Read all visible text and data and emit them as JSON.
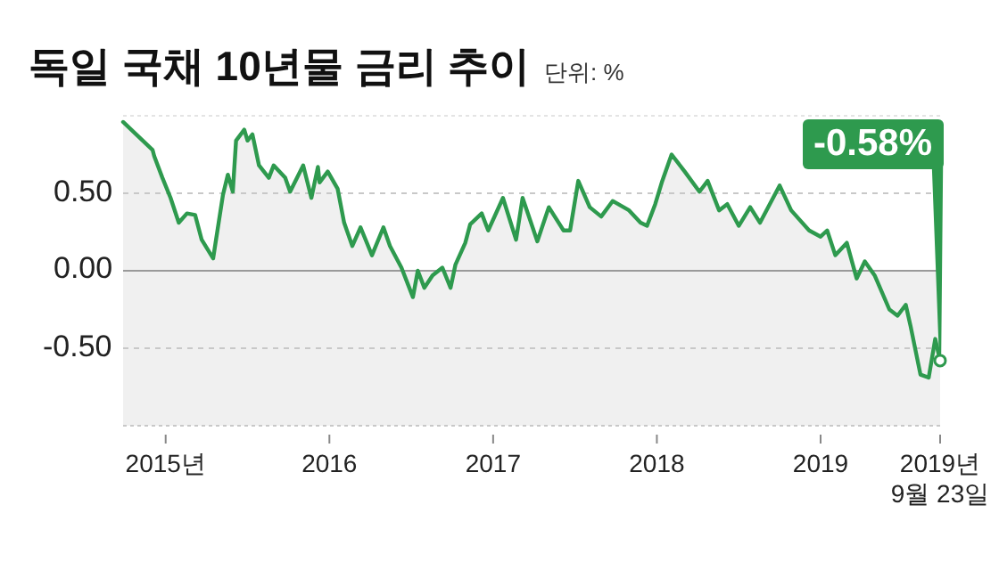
{
  "chart_data": {
    "type": "area",
    "title": "독일 국채 10년물 금리 추이",
    "subtitle": "단위: %",
    "x": [
      2014.74,
      2014.82,
      2014.92,
      2014.93,
      2014.98,
      2015.03,
      2015.08,
      2015.13,
      2015.18,
      2015.22,
      2015.29,
      2015.35,
      2015.38,
      2015.41,
      2015.43,
      2015.48,
      2015.5,
      2015.53,
      2015.57,
      2015.63,
      2015.66,
      2015.73,
      2015.76,
      2015.84,
      2015.89,
      2015.93,
      2015.94,
      2015.99,
      2016.05,
      2016.09,
      2016.14,
      2016.19,
      2016.26,
      2016.33,
      2016.37,
      2016.44,
      2016.51,
      2016.54,
      2016.58,
      2016.63,
      2016.69,
      2016.74,
      2016.77,
      2016.83,
      2016.86,
      2016.93,
      2016.97,
      2017.06,
      2017.14,
      2017.18,
      2017.27,
      2017.34,
      2017.43,
      2017.47,
      2017.52,
      2017.59,
      2017.66,
      2017.73,
      2017.83,
      2017.9,
      2017.94,
      2017.99,
      2018.03,
      2018.09,
      2018.17,
      2018.26,
      2018.31,
      2018.38,
      2018.43,
      2018.5,
      2018.57,
      2018.63,
      2018.75,
      2018.82,
      2018.93,
      2019.0,
      2019.04,
      2019.09,
      2019.16,
      2019.22,
      2019.27,
      2019.33,
      2019.42,
      2019.47,
      2019.52,
      2019.55,
      2019.61,
      2019.66,
      2019.7,
      2019.73
    ],
    "series": [
      {
        "color": "#2e9a4e",
        "values": [
          0.96,
          0.88,
          0.78,
          0.74,
          0.6,
          0.47,
          0.31,
          0.37,
          0.36,
          0.2,
          0.08,
          0.49,
          0.62,
          0.51,
          0.84,
          0.91,
          0.84,
          0.88,
          0.68,
          0.6,
          0.68,
          0.6,
          0.51,
          0.68,
          0.47,
          0.67,
          0.57,
          0.64,
          0.53,
          0.31,
          0.16,
          0.28,
          0.1,
          0.28,
          0.16,
          0.02,
          -0.17,
          0.0,
          -0.11,
          -0.03,
          0.02,
          -0.11,
          0.04,
          0.18,
          0.3,
          0.37,
          0.26,
          0.47,
          0.2,
          0.47,
          0.19,
          0.41,
          0.26,
          0.26,
          0.58,
          0.41,
          0.35,
          0.45,
          0.39,
          0.31,
          0.29,
          0.43,
          0.57,
          0.75,
          0.64,
          0.51,
          0.58,
          0.39,
          0.43,
          0.29,
          0.41,
          0.31,
          0.55,
          0.39,
          0.26,
          0.22,
          0.26,
          0.1,
          0.18,
          -0.05,
          0.06,
          -0.03,
          -0.25,
          -0.29,
          -0.22,
          -0.36,
          -0.67,
          -0.69,
          -0.44,
          -0.58
        ]
      }
    ],
    "xlim": [
      2014.74,
      2019.73
    ],
    "ylim": [
      -1,
      1
    ],
    "xticks": [
      {
        "value": 2015,
        "label": "2015년"
      },
      2016,
      2017,
      2018,
      2019,
      {
        "value": 2019.73,
        "label": "2019년 9월 23일"
      }
    ],
    "yticks": [
      {
        "value": 0.5,
        "label": "0.50"
      },
      {
        "value": 0,
        "label": "0.00"
      },
      {
        "value": -0.5,
        "label": "-0.50"
      }
    ],
    "grid": "y",
    "ref_lines": [
      {
        "axis": "y",
        "value": 0,
        "color": "#9a9a9a"
      }
    ],
    "bands": [
      {
        "axis": "y",
        "from": -1,
        "to": 0,
        "color": "#f0f0f0"
      }
    ],
    "annotations": [
      {
        "text": "-0.58%",
        "x": 2019.73,
        "y": -0.58
      }
    ]
  }
}
